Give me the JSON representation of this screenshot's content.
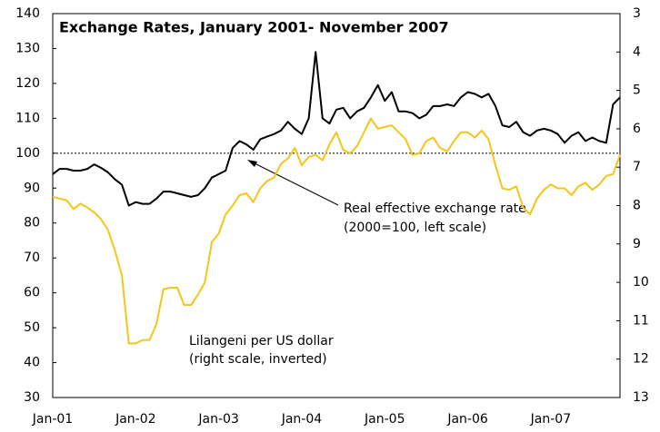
{
  "chart_data": {
    "type": "line",
    "title": "Exchange Rates, January 2001- November 2007",
    "categories": [
      "Jan-01",
      null,
      null,
      null,
      null,
      null,
      null,
      null,
      null,
      null,
      null,
      null,
      "Jan-02",
      null,
      null,
      null,
      null,
      null,
      null,
      null,
      null,
      null,
      null,
      null,
      "Jan-03",
      null,
      null,
      null,
      null,
      null,
      null,
      null,
      null,
      null,
      null,
      null,
      "Jan-04",
      null,
      null,
      null,
      null,
      null,
      null,
      null,
      null,
      null,
      null,
      null,
      "Jan-05",
      null,
      null,
      null,
      null,
      null,
      null,
      null,
      null,
      null,
      null,
      null,
      "Jan-06",
      null,
      null,
      null,
      null,
      null,
      null,
      null,
      null,
      null,
      null,
      null,
      "Jan-07",
      null,
      null,
      null,
      null,
      null,
      null,
      null,
      null,
      null,
      null
    ],
    "series": [
      {
        "name": "Real effective exchange rate",
        "note": "(2000=100, left scale)",
        "color": "#000000",
        "axis": "y",
        "values": [
          94,
          95.5,
          95.5,
          95,
          95,
          95.5,
          96.8,
          95.8,
          94.5,
          92.5,
          91,
          85,
          86,
          85.5,
          85.5,
          87,
          89,
          89,
          88.5,
          88,
          87.5,
          88,
          90,
          93,
          94,
          95,
          101.5,
          103.5,
          102.5,
          101,
          104,
          104.8,
          105.5,
          106.5,
          109,
          107,
          105.5,
          110,
          129,
          110,
          108.5,
          112.5,
          113,
          110,
          112,
          113,
          116,
          119.5,
          115,
          117.5,
          112,
          112,
          111.5,
          110,
          111,
          113.5,
          113.5,
          114,
          113.5,
          116,
          117.5,
          117,
          116,
          117,
          113.5,
          108,
          107.5,
          109,
          106,
          105,
          106.5,
          107,
          106.5,
          105.5,
          103,
          105,
          106,
          103.5,
          104.5,
          103.5,
          103,
          114,
          116
        ]
      },
      {
        "name": "Lilangeni per US dollar",
        "note": "(right scale, inverted)",
        "color": "#f5c518",
        "axis": "y2",
        "values": [
          7.77,
          7.82,
          7.86,
          8.09,
          7.95,
          8.05,
          8.18,
          8.36,
          8.64,
          9.18,
          9.82,
          11.59,
          11.59,
          11.5,
          11.5,
          11.09,
          10.18,
          10.14,
          10.14,
          10.59,
          10.59,
          10.32,
          10,
          8.95,
          8.73,
          8.23,
          8,
          7.73,
          7.68,
          7.91,
          7.55,
          7.36,
          7.27,
          6.91,
          6.77,
          6.5,
          6.95,
          6.73,
          6.68,
          6.82,
          6.41,
          6.09,
          6.55,
          6.64,
          6.45,
          6.09,
          5.73,
          6,
          5.95,
          5.91,
          6.09,
          6.27,
          6.68,
          6.64,
          6.32,
          6.23,
          6.5,
          6.59,
          6.32,
          6.09,
          6.09,
          6.23,
          6.05,
          6.27,
          6.95,
          7.55,
          7.59,
          7.5,
          8.05,
          8.23,
          7.82,
          7.59,
          7.45,
          7.55,
          7.55,
          7.73,
          7.5,
          7.41,
          7.59,
          7.45,
          7.23,
          7.18,
          6.68
        ]
      }
    ],
    "ylim": [
      30,
      140
    ],
    "yticks": [
      30,
      40,
      50,
      60,
      70,
      80,
      90,
      100,
      110,
      120,
      130,
      140
    ],
    "y2lim": [
      3,
      13
    ],
    "y2ticks": [
      3,
      4,
      5,
      6,
      7,
      8,
      9,
      10,
      11,
      12,
      13
    ],
    "y2_inverted": true,
    "reference_line": 100,
    "grid": false
  }
}
